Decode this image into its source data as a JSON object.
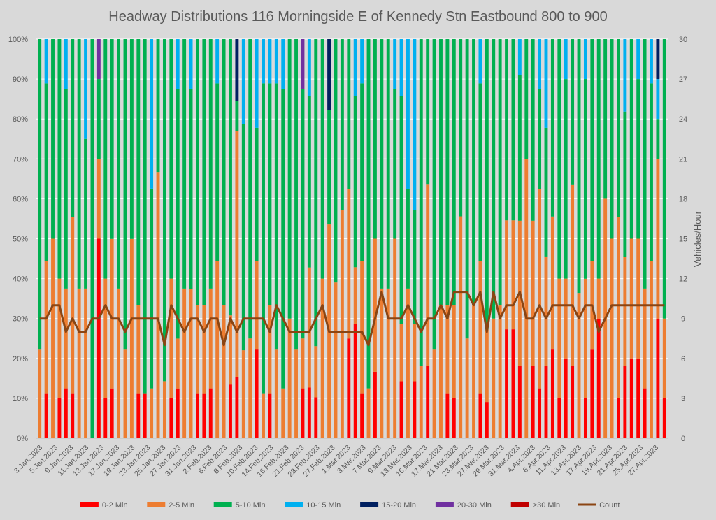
{
  "chart_data": {
    "type": "bar",
    "stacked": "percent",
    "title": "Headway Distributions 116 Morningside  E of Kennedy Stn Eastbound 800 to 900",
    "xlabel": "",
    "ylabel": "",
    "y2label": "Vehicles/Hour",
    "ylim": [
      0,
      100
    ],
    "y2lim": [
      0,
      30
    ],
    "y_ticks": [
      "0%",
      "10%",
      "20%",
      "30%",
      "40%",
      "50%",
      "60%",
      "70%",
      "80%",
      "90%",
      "100%"
    ],
    "y2_ticks": [
      "0",
      "3",
      "6",
      "9",
      "12",
      "15",
      "18",
      "21",
      "24",
      "27",
      "30"
    ],
    "grid": true,
    "legend_position": "bottom",
    "x_tick_labels": [
      "3.Jan.2023",
      "5.Jan.2023",
      "9.Jan.2023",
      "11.Jan.2023",
      "13.Jan.2023",
      "17.Jan.2023",
      "19.Jan.2023",
      "23.Jan.2023",
      "25.Jan.2023",
      "27.Jan.2023",
      "31.Jan.2023",
      "2.Feb.2023",
      "6.Feb.2023",
      "8.Feb.2023",
      "10.Feb.2023",
      "14.Feb.2023",
      "16.Feb.2023",
      "21.Feb.2023",
      "23.Feb.2023",
      "27.Feb.2023",
      "1.Mar.2023",
      "3.Mar.2023",
      "7.Mar.2023",
      "9.Mar.2023",
      "13.Mar.2023",
      "15.Mar.2023",
      "17.Mar.2023",
      "21.Mar.2023",
      "23.Mar.2023",
      "27.Mar.2023",
      "29.Mar.2023",
      "31.Mar.2023",
      "4.Apr.2023",
      "6.Apr.2023",
      "11.Apr.2023",
      "13.Apr.2023",
      "17.Apr.2023",
      "19.Apr.2023",
      "21.Apr.2023",
      "25.Apr.2023",
      "27.Apr.2023"
    ],
    "series": [
      {
        "name": "0-2 Min",
        "type": "bar",
        "color": "#ff0000",
        "values": [
          0,
          11.1,
          0,
          10,
          12.5,
          11.1,
          0,
          0,
          0,
          55.6,
          10,
          11.1,
          0,
          0,
          0,
          11.1,
          11.1,
          0,
          0,
          0,
          10,
          11.1,
          0,
          0,
          11.1,
          11.1,
          12.5,
          0,
          0,
          11.1,
          14.3,
          0,
          0,
          22.2,
          0,
          11.1,
          0,
          0,
          0,
          0,
          12.5,
          11.1,
          10,
          0,
          0,
          0,
          0,
          25,
          25,
          11.1,
          0,
          20,
          0,
          0,
          0,
          12.5,
          0,
          14.3,
          0,
          18.2,
          0,
          0,
          11.1,
          10,
          0,
          0,
          0,
          11.1,
          10,
          0,
          0,
          27.3,
          27.3,
          18.2,
          0,
          18.2,
          12.5,
          18.2,
          22.2,
          10,
          20,
          18.2,
          0,
          11.1,
          22.2,
          30,
          0,
          0,
          10,
          22.2,
          20,
          20,
          12.5,
          0,
          30,
          10
        ]
      },
      {
        "name": "2-5 Min",
        "type": "bar",
        "color": "#ed7d31",
        "values": [
          22.2,
          33.3,
          50,
          30,
          25,
          44.4,
          37.5,
          37.5,
          0,
          22.2,
          30,
          33.3,
          37.5,
          22.2,
          44.4,
          22.2,
          0,
          11.1,
          66.7,
          14.3,
          30,
          11.1,
          37.5,
          33.3,
          22.2,
          22.2,
          25,
          44.4,
          33.3,
          14.3,
          57.1,
          22.2,
          25,
          22.2,
          11.1,
          22.2,
          22.2,
          12.5,
          30,
          22.2,
          12.5,
          26.3,
          12.5,
          40,
          37.5,
          40,
          50,
          37.5,
          12.5,
          33.3,
          12.5,
          40,
          37.5,
          37.5,
          50,
          12.5,
          37.5,
          14.3,
          18.2,
          45.5,
          22.2,
          33.3,
          22.2,
          23.3,
          55.6,
          25,
          33.3,
          33.3,
          20,
          30,
          33.3,
          27.3,
          27.3,
          36.3,
          70,
          36.3,
          50,
          27.3,
          33.3,
          30,
          20,
          45.4,
          36.4,
          33.3,
          22.2,
          10,
          60,
          50,
          45.5,
          33.3,
          30,
          30,
          25,
          44.4,
          40,
          20
        ]
      },
      {
        "name": "5-10 Min",
        "type": "bar",
        "color": "#00b050",
        "values": [
          77.8,
          44.5,
          50,
          60,
          50,
          44.5,
          62.5,
          37.5,
          100,
          22.2,
          60,
          44.5,
          62.5,
          77.8,
          44.5,
          66.7,
          88.9,
          44.5,
          33.3,
          85.7,
          60,
          55.6,
          62.5,
          44.5,
          66.7,
          66.7,
          62.5,
          44.5,
          66.7,
          57.1,
          7.1,
          57.1,
          75,
          33.3,
          77.8,
          55.6,
          66.7,
          75.1,
          70,
          77.8,
          62.5,
          37.5,
          75,
          60,
          20,
          62.5,
          37.5,
          37.5,
          37.5,
          44.5,
          87.5,
          60,
          62.5,
          62.5,
          37.5,
          50,
          25,
          28.6,
          81.8,
          36.3,
          77.8,
          66.7,
          66.7,
          66.7,
          44.4,
          75,
          66.7,
          44.5,
          80,
          70,
          66.7,
          45.4,
          45.4,
          36.4,
          30,
          45.5,
          25,
          32.2,
          44.4,
          60,
          50,
          36.4,
          63.6,
          55.6,
          55.6,
          60,
          40,
          50,
          44.5,
          44.5,
          50,
          40,
          62.5,
          44.5,
          10,
          70
        ]
      },
      {
        "name": "10-15 Min",
        "type": "bar",
        "color": "#00b0f0",
        "values": [
          0,
          11.1,
          0,
          0,
          12.5,
          0,
          0,
          25,
          0,
          0,
          0,
          0,
          0,
          0,
          0,
          0,
          0,
          33.3,
          0,
          0,
          0,
          11.1,
          0,
          11.1,
          0,
          0,
          0,
          11.1,
          0,
          0,
          0,
          21.4,
          0,
          22.2,
          11.1,
          11.1,
          11.1,
          12.5,
          0,
          0,
          0,
          12.5,
          0,
          0,
          0,
          0,
          0,
          0,
          12.5,
          11.1,
          0,
          0,
          0,
          0,
          12.5,
          12.5,
          37.5,
          42.9,
          0,
          0,
          0,
          0,
          0,
          0,
          0,
          0,
          0,
          11.1,
          0,
          0,
          0,
          0,
          0,
          9.1,
          0,
          0,
          12.5,
          22.2,
          0,
          0,
          10,
          0,
          0,
          11.1,
          0,
          0,
          0,
          0,
          0,
          22.2,
          0,
          10,
          0,
          11.1,
          10,
          0
        ]
      },
      {
        "name": "15-20 Min",
        "type": "bar",
        "color": "#002060",
        "values": [
          0,
          0,
          0,
          0,
          0,
          0,
          0,
          0,
          0,
          0,
          0,
          0,
          0,
          0,
          0,
          0,
          0,
          0,
          0,
          0,
          0,
          0,
          0,
          0,
          0,
          0,
          0,
          0,
          0,
          0,
          14.3,
          0,
          0,
          0,
          0,
          0,
          0,
          0,
          0,
          0,
          0,
          0,
          0,
          0,
          12.5,
          0,
          0,
          0,
          0,
          0,
          0,
          0,
          0,
          0,
          0,
          0,
          0,
          0,
          0,
          0,
          0,
          0,
          0,
          0,
          0,
          0,
          0,
          0,
          0,
          0,
          0,
          0,
          0,
          0,
          0,
          0,
          0,
          0,
          0,
          0,
          0,
          0,
          0,
          0,
          0,
          0,
          0,
          0,
          0,
          0,
          0,
          0,
          0,
          0,
          10,
          0
        ]
      },
      {
        "name": "20-30 Min",
        "type": "bar",
        "color": "#7030a0",
        "values": [
          0,
          0,
          0,
          0,
          0,
          0,
          0,
          0,
          0,
          11.1,
          0,
          0,
          0,
          0,
          0,
          0,
          0,
          0,
          0,
          0,
          0,
          0,
          0,
          0,
          0,
          0,
          0,
          0,
          0,
          0,
          0,
          0,
          0,
          0,
          0,
          0,
          0,
          0,
          0,
          0,
          12.5,
          0,
          0,
          0,
          0,
          0,
          0,
          0,
          0,
          0,
          0,
          0,
          0,
          0,
          0,
          0,
          0,
          0,
          0,
          0,
          0,
          0,
          0,
          0,
          0,
          0,
          0,
          0,
          0,
          0,
          0,
          0,
          0,
          0,
          0,
          0,
          0,
          0,
          0,
          0,
          0,
          0,
          0,
          0,
          0,
          0,
          0,
          0,
          0,
          0,
          0,
          0,
          0,
          0,
          0,
          0
        ]
      },
      {
        "name": ">30 Min",
        "type": "bar",
        "color": "#c00000",
        "values": [
          0,
          0,
          0,
          0,
          0,
          0,
          0,
          0,
          0,
          0,
          0,
          0,
          0,
          0,
          0,
          0,
          0,
          0,
          0,
          0,
          0,
          0,
          0,
          0,
          0,
          0,
          0,
          0,
          0,
          0,
          0,
          0,
          0,
          0,
          0,
          0,
          0,
          0,
          0,
          0,
          0,
          0,
          0,
          0,
          0,
          0,
          0,
          0,
          0,
          0,
          0,
          0,
          0,
          0,
          0,
          0,
          0,
          0,
          0,
          0,
          0,
          0,
          0,
          0,
          0,
          0,
          0,
          0,
          0,
          0,
          0,
          0,
          0,
          0,
          0,
          0,
          0,
          0,
          0,
          0,
          0,
          0,
          0,
          0,
          0,
          0,
          0,
          0,
          0,
          0,
          0,
          0,
          0,
          0,
          0,
          0
        ]
      },
      {
        "name": "Count",
        "type": "line",
        "axis": "right",
        "color": "#8b4513",
        "values": [
          9,
          9,
          10,
          10,
          8,
          9,
          8,
          8,
          9,
          9,
          10,
          9,
          9,
          8,
          9,
          9,
          9,
          9,
          9,
          7,
          10,
          9,
          8,
          9,
          9,
          8,
          9,
          9,
          7,
          9,
          8,
          9,
          9,
          9,
          9,
          8,
          10,
          9,
          8,
          8,
          8,
          8,
          9,
          10,
          8,
          8,
          8,
          8,
          8,
          8,
          7,
          9,
          11,
          9,
          9,
          9,
          10,
          9,
          8,
          9,
          9,
          10,
          9,
          11,
          11,
          11,
          10,
          11,
          8,
          11,
          9,
          10,
          10,
          11,
          9,
          9,
          10,
          9,
          10,
          10,
          10,
          10,
          9,
          10,
          10,
          8,
          9,
          10,
          10,
          10,
          10,
          10,
          10,
          10,
          10,
          10
        ]
      }
    ]
  }
}
